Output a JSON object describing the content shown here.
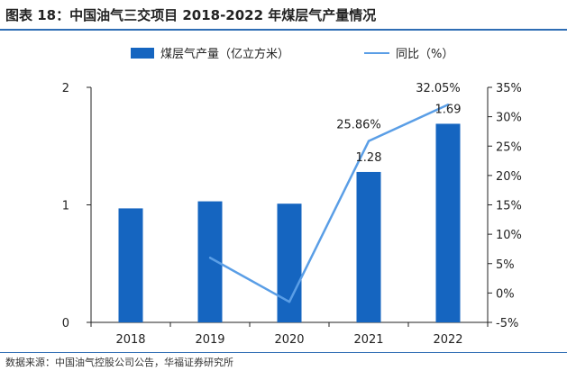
{
  "figure": {
    "title": "图表 18：中国油气三交项目 2018-2022 年煤层气产量情况",
    "source": "数据来源：中国油气控股公司公告，华福证券研究所"
  },
  "chart_data": {
    "type": "bar+line",
    "categories": [
      "2018",
      "2019",
      "2020",
      "2021",
      "2022"
    ],
    "series": [
      {
        "name": "煤层气产量（亿立方米）",
        "type": "bar",
        "axis": "left",
        "color": "#1565c0",
        "values": [
          0.97,
          1.03,
          1.01,
          1.28,
          1.69
        ],
        "labels": [
          null,
          null,
          null,
          "1.28",
          "1.69"
        ]
      },
      {
        "name": "同比（%）",
        "type": "line",
        "axis": "right",
        "color": "#5a9ee6",
        "values": [
          null,
          6.0,
          -1.5,
          25.86,
          32.05
        ],
        "labels": [
          null,
          null,
          null,
          "25.86%",
          "32.05%"
        ]
      }
    ],
    "y_left": {
      "min": 0,
      "max": 2,
      "ticks": [
        0,
        1,
        2
      ],
      "tick_labels": [
        "0",
        "1",
        "2"
      ]
    },
    "y_right": {
      "min": -5,
      "max": 35,
      "ticks": [
        -5,
        0,
        5,
        10,
        15,
        20,
        25,
        30,
        35
      ],
      "tick_labels": [
        "-5%",
        "0%",
        "5%",
        "10%",
        "15%",
        "20%",
        "25%",
        "30%",
        "35%"
      ]
    },
    "legend": "top-center",
    "grid": false
  }
}
